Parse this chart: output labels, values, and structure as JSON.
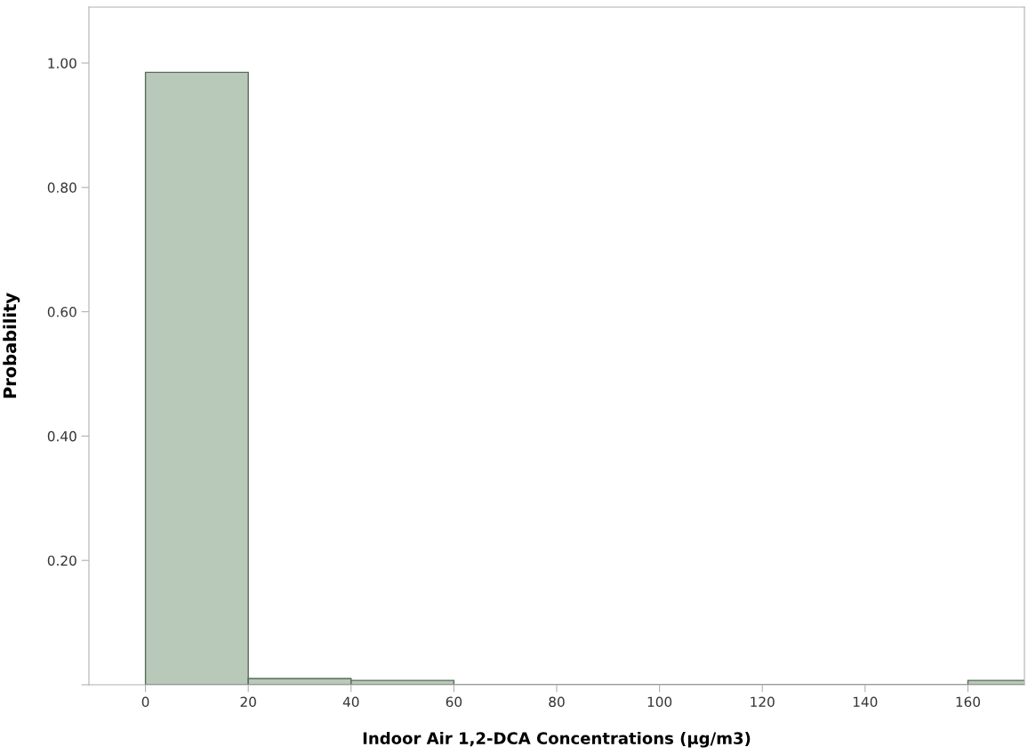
{
  "chart_data": {
    "type": "histogram",
    "xlabel": "Indoor Air 1,2-DCA Concentrations (µg/m3)",
    "ylabel": "Probability",
    "bins": [
      0,
      20,
      40,
      60,
      80,
      100,
      120,
      140,
      160,
      180
    ],
    "values": [
      0.985,
      0.01,
      0.007,
      0,
      0,
      0,
      0,
      0,
      0.007
    ],
    "color": "#b9c9b9",
    "xlim": [
      -11,
      171
    ],
    "xticks": [
      0,
      20,
      40,
      60,
      80,
      100,
      120,
      140,
      160
    ],
    "ylim": [
      0,
      1.09
    ],
    "yticks": [
      {
        "value": 0,
        "label": null
      },
      {
        "value": 0.2,
        "label": "0.20"
      },
      {
        "value": 0.4,
        "label": "0.40"
      },
      {
        "value": 0.6,
        "label": "0.60"
      },
      {
        "value": 0.8,
        "label": "0.80"
      },
      {
        "value": 1.0,
        "label": "1.00"
      }
    ],
    "grid": false
  }
}
